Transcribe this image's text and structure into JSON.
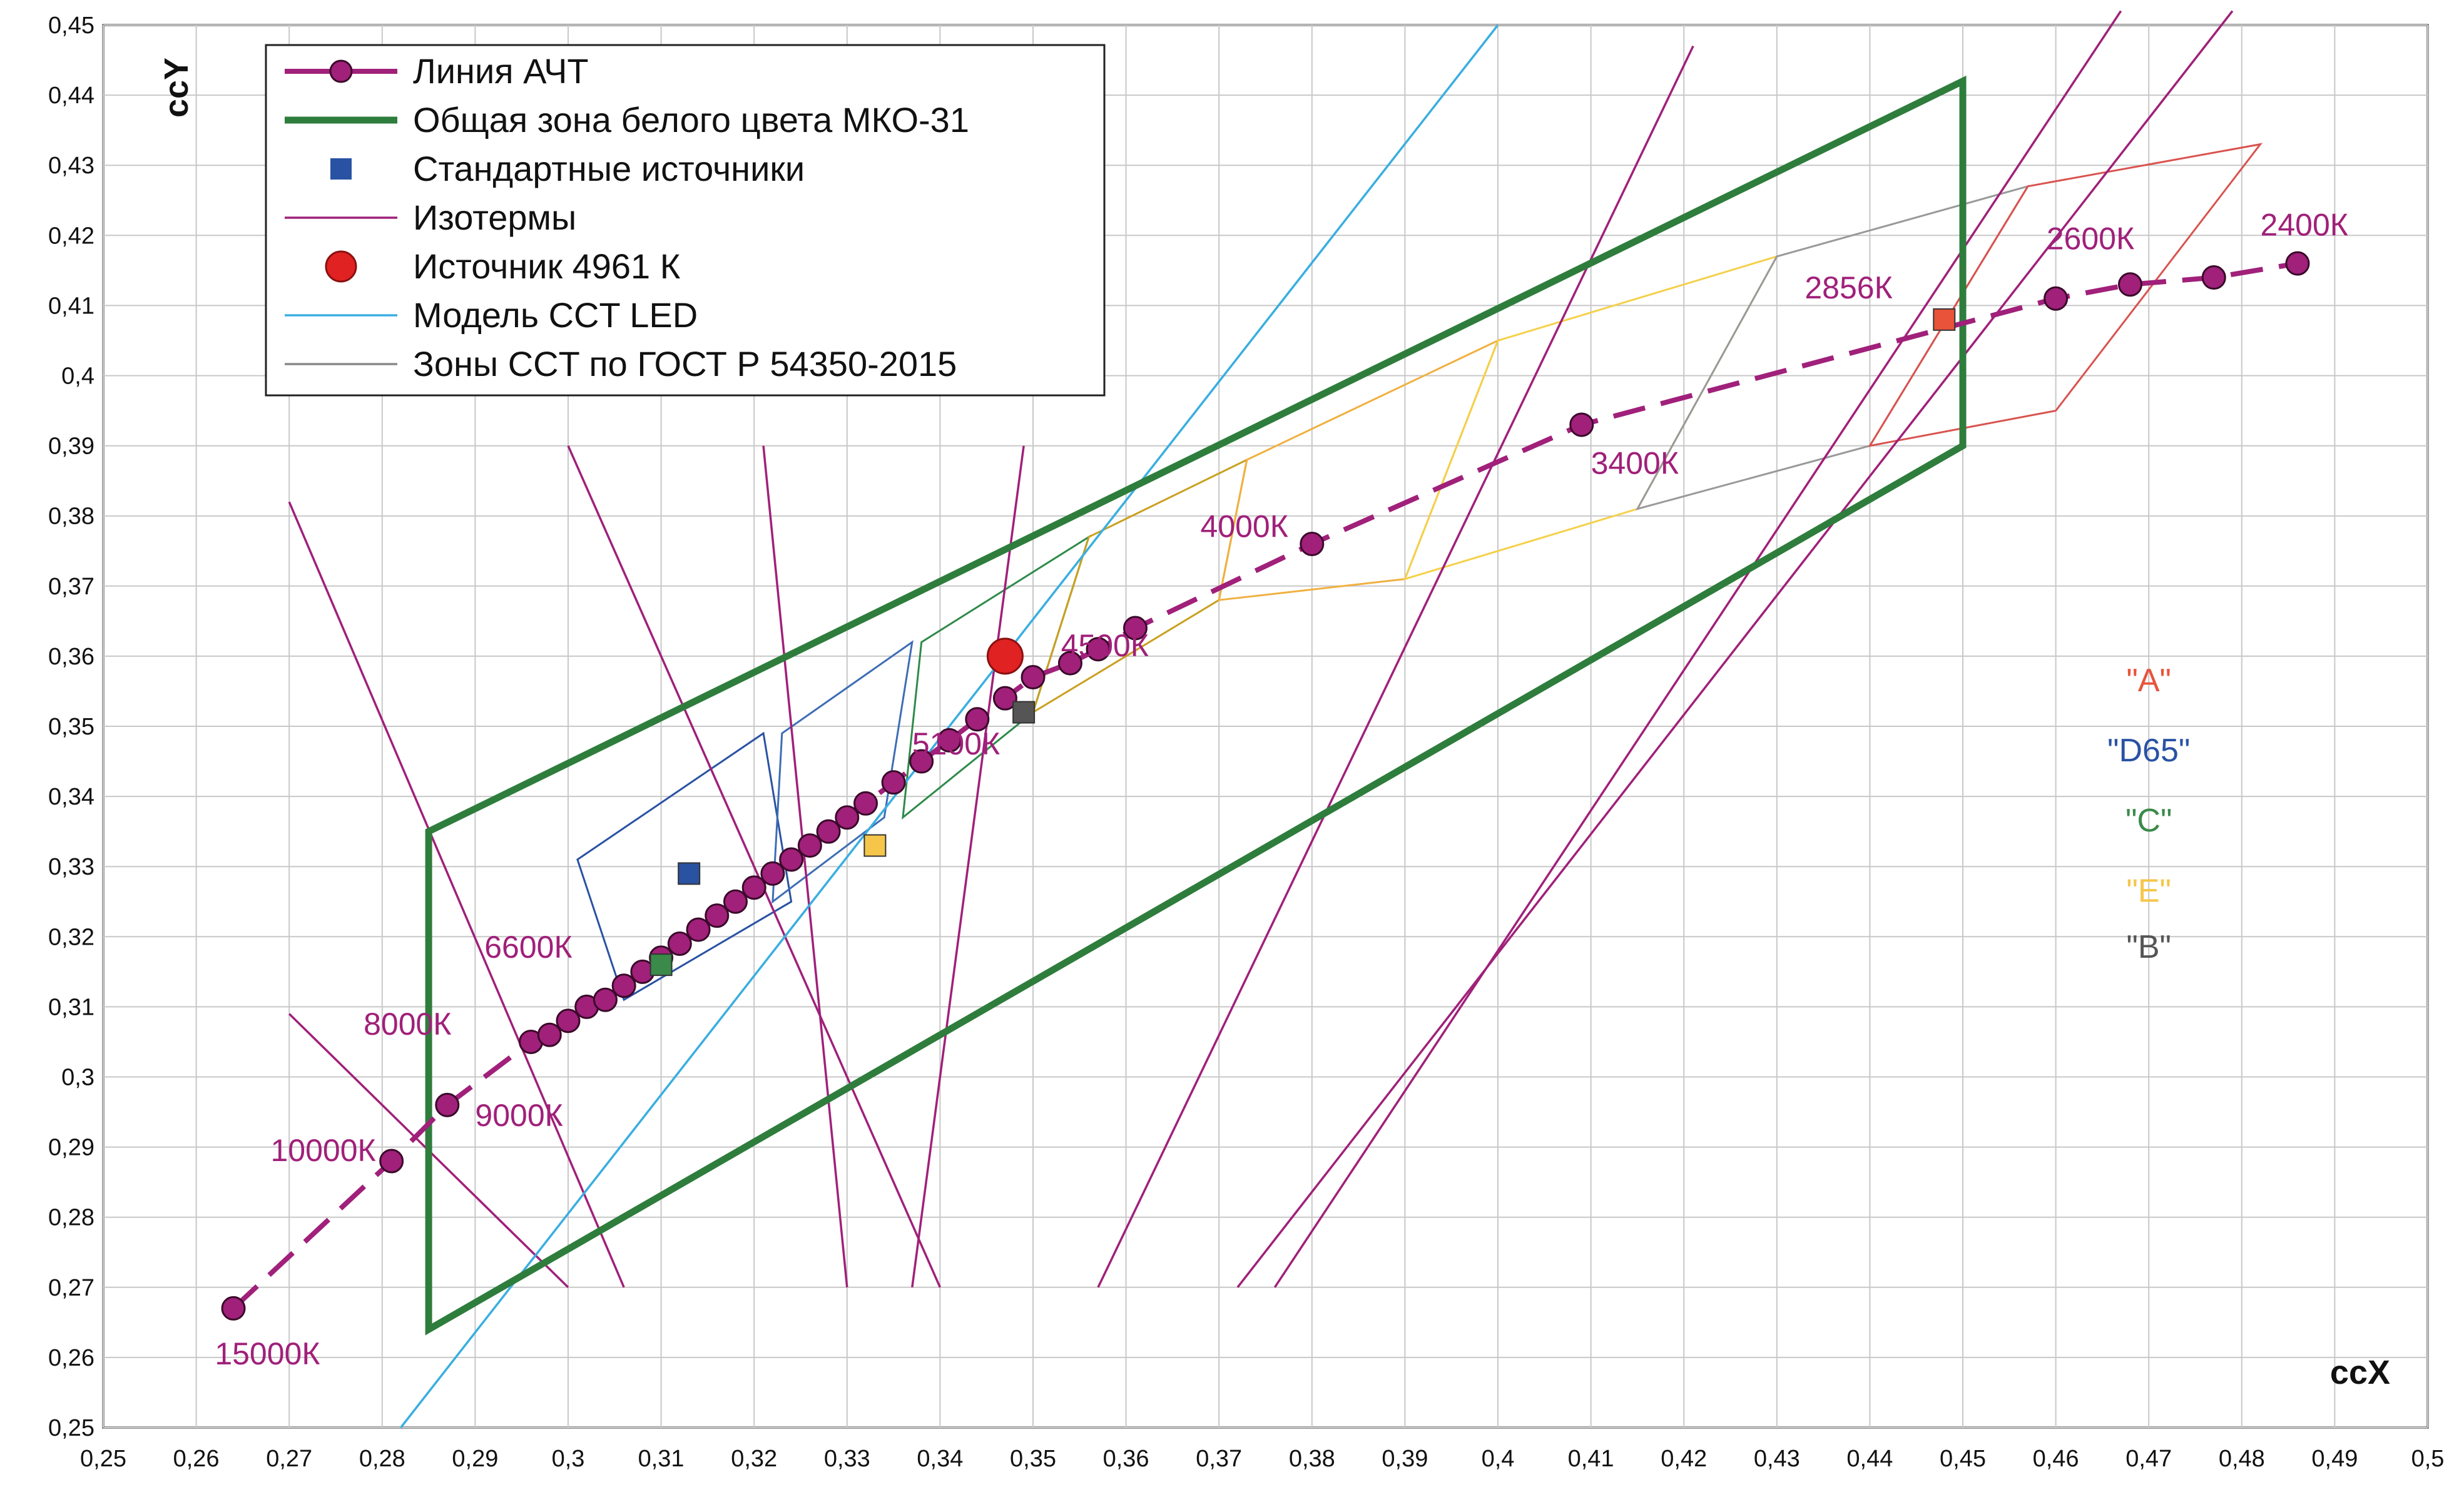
{
  "chart_data": {
    "type": "scatter",
    "xlabel": "ccX",
    "ylabel": "ccY",
    "xlim": [
      0.25,
      0.5
    ],
    "ylim": [
      0.25,
      0.45
    ],
    "x_ticks": [
      "0,25",
      "0,26",
      "0,27",
      "0,28",
      "0,29",
      "0,3",
      "0,31",
      "0,32",
      "0,33",
      "0,34",
      "0,35",
      "0,36",
      "0,37",
      "0,38",
      "0,39",
      "0,4",
      "0,41",
      "0,42",
      "0,43",
      "0,44",
      "0,45",
      "0,46",
      "0,47",
      "0,48",
      "0,49",
      "0,5"
    ],
    "y_ticks": [
      "0,25",
      "0,26",
      "0,27",
      "0,28",
      "0,29",
      "0,3",
      "0,31",
      "0,32",
      "0,33",
      "0,34",
      "0,35",
      "0,36",
      "0,37",
      "0,38",
      "0,39",
      "0,4",
      "0,41",
      "0,42",
      "0,43",
      "0,44",
      "0,45"
    ],
    "grid": true,
    "legend_position": "top-left",
    "legend": [
      {
        "label": "Линия АЧТ",
        "kind": "dashed-line-marker",
        "color": "#a0207a"
      },
      {
        "label": "Общая зона белого цвета МКО-31",
        "kind": "line",
        "color": "#2e7d3c"
      },
      {
        "label": "Стандартные источники",
        "kind": "square",
        "color": "#2952a3"
      },
      {
        "label": "Изотермы",
        "kind": "line",
        "color": "#a0207a"
      },
      {
        "label": "Источник 4961 К",
        "kind": "circle",
        "color": "#e02222"
      },
      {
        "label": "Модель CCT LED",
        "kind": "line",
        "color": "#3aaee0"
      },
      {
        "label": "Зоны CCT по ГОСТ Р 54350-2015",
        "kind": "line",
        "color": "#888888"
      }
    ],
    "planckian_locus": {
      "name": "Линия АЧТ",
      "color": "#a0207a",
      "points": [
        [
          0.264,
          0.267
        ],
        [
          0.281,
          0.288
        ],
        [
          0.287,
          0.296
        ],
        [
          0.296,
          0.305
        ],
        [
          0.298,
          0.306
        ],
        [
          0.3,
          0.308
        ],
        [
          0.302,
          0.31
        ],
        [
          0.304,
          0.311
        ],
        [
          0.306,
          0.313
        ],
        [
          0.308,
          0.315
        ],
        [
          0.31,
          0.317
        ],
        [
          0.312,
          0.319
        ],
        [
          0.314,
          0.321
        ],
        [
          0.316,
          0.323
        ],
        [
          0.318,
          0.325
        ],
        [
          0.32,
          0.327
        ],
        [
          0.322,
          0.329
        ],
        [
          0.324,
          0.331
        ],
        [
          0.326,
          0.333
        ],
        [
          0.328,
          0.335
        ],
        [
          0.33,
          0.337
        ],
        [
          0.332,
          0.339
        ],
        [
          0.335,
          0.342
        ],
        [
          0.338,
          0.345
        ],
        [
          0.341,
          0.348
        ],
        [
          0.344,
          0.351
        ],
        [
          0.347,
          0.354
        ],
        [
          0.35,
          0.357
        ],
        [
          0.354,
          0.359
        ],
        [
          0.357,
          0.361
        ],
        [
          0.361,
          0.364
        ],
        [
          0.38,
          0.376
        ],
        [
          0.409,
          0.393
        ],
        [
          0.46,
          0.411
        ],
        [
          0.468,
          0.413
        ],
        [
          0.477,
          0.414
        ],
        [
          0.486,
          0.416
        ]
      ]
    },
    "planckian_labels": [
      {
        "text": "15000К",
        "x": 0.262,
        "y": 0.259
      },
      {
        "text": "10000К",
        "x": 0.268,
        "y": 0.288
      },
      {
        "text": "9000К",
        "x": 0.29,
        "y": 0.293
      },
      {
        "text": "8000К",
        "x": 0.278,
        "y": 0.306
      },
      {
        "text": "6600К",
        "x": 0.291,
        "y": 0.317
      },
      {
        "text": "5100К",
        "x": 0.337,
        "y": 0.346
      },
      {
        "text": "4500К",
        "x": 0.353,
        "y": 0.36
      },
      {
        "text": "4000К",
        "x": 0.368,
        "y": 0.377
      },
      {
        "text": "3400К",
        "x": 0.41,
        "y": 0.386
      },
      {
        "text": "2856К",
        "x": 0.433,
        "y": 0.411
      },
      {
        "text": "2600К",
        "x": 0.459,
        "y": 0.418
      },
      {
        "text": "2400К",
        "x": 0.482,
        "y": 0.42
      }
    ],
    "white_zone": {
      "name": "Общая зона белого цвета МКО-31",
      "color": "#2e7d3c",
      "points": [
        [
          0.285,
          0.335
        ],
        [
          0.45,
          0.442
        ],
        [
          0.45,
          0.39
        ],
        [
          0.285,
          0.264
        ]
      ]
    },
    "isotherms": {
      "color": "#a0207a",
      "lines": [
        [
          [
            0.27,
            0.382
          ],
          [
            0.306,
            0.27
          ]
        ],
        [
          [
            0.27,
            0.309
          ],
          [
            0.3,
            0.27
          ]
        ],
        [
          [
            0.3,
            0.39
          ],
          [
            0.34,
            0.27
          ]
        ],
        [
          [
            0.321,
            0.39
          ],
          [
            0.33,
            0.27
          ]
        ],
        [
          [
            0.349,
            0.39
          ],
          [
            0.337,
            0.27
          ]
        ],
        [
          [
            0.421,
            0.447
          ],
          [
            0.357,
            0.27
          ]
        ],
        [
          [
            0.467,
            0.452
          ],
          [
            0.376,
            0.27
          ]
        ],
        [
          [
            0.479,
            0.452
          ],
          [
            0.372,
            0.27
          ]
        ]
      ]
    },
    "led_model": {
      "name": "Модель CCT LED",
      "color": "#3aaee0",
      "points": [
        [
          0.282,
          0.25
        ],
        [
          0.4,
          0.45
        ]
      ]
    },
    "gost_zones": [
      {
        "color": "#2952a3",
        "points": [
          [
            0.301,
            0.331
          ],
          [
            0.321,
            0.349
          ],
          [
            0.324,
            0.325
          ],
          [
            0.306,
            0.311
          ]
        ]
      },
      {
        "color": "#3d6db5",
        "points": [
          [
            0.323,
            0.349
          ],
          [
            0.337,
            0.362
          ],
          [
            0.334,
            0.337
          ],
          [
            0.322,
            0.325
          ]
        ]
      },
      {
        "color": "#2e8a4a",
        "points": [
          [
            0.338,
            0.362
          ],
          [
            0.356,
            0.377
          ],
          [
            0.35,
            0.352
          ],
          [
            0.336,
            0.337
          ]
        ]
      },
      {
        "color": "#c9a020",
        "points": [
          [
            0.356,
            0.377
          ],
          [
            0.373,
            0.388
          ],
          [
            0.37,
            0.368
          ],
          [
            0.35,
            0.352
          ]
        ]
      },
      {
        "color": "#f0b040",
        "points": [
          [
            0.373,
            0.388
          ],
          [
            0.4,
            0.405
          ],
          [
            0.39,
            0.371
          ],
          [
            0.37,
            0.368
          ]
        ]
      },
      {
        "color": "#f5d04a",
        "points": [
          [
            0.4,
            0.405
          ],
          [
            0.43,
            0.417
          ],
          [
            0.415,
            0.381
          ],
          [
            0.39,
            0.371
          ]
        ]
      },
      {
        "color": "#999999",
        "points": [
          [
            0.43,
            0.417
          ],
          [
            0.457,
            0.427
          ],
          [
            0.44,
            0.39
          ],
          [
            0.415,
            0.381
          ]
        ]
      },
      {
        "color": "#d9534f",
        "points": [
          [
            0.457,
            0.427
          ],
          [
            0.482,
            0.433
          ],
          [
            0.46,
            0.395
          ],
          [
            0.44,
            0.39
          ]
        ]
      }
    ],
    "standard_sources": [
      {
        "name": "\"A\"",
        "x": 0.448,
        "y": 0.408,
        "color": "#e8533a",
        "label_color": "#e8533a"
      },
      {
        "name": "\"D65\"",
        "x": 0.313,
        "y": 0.329,
        "color": "#2952a3",
        "label_color": "#2952a3"
      },
      {
        "name": "\"C\"",
        "x": 0.31,
        "y": 0.316,
        "color": "#3a8a4a",
        "label_color": "#3a8a4a"
      },
      {
        "name": "\"E\"",
        "x": 0.333,
        "y": 0.333,
        "color": "#f5c64a",
        "label_color": "#f5c64a"
      },
      {
        "name": "\"B\"",
        "x": 0.349,
        "y": 0.352,
        "color": "#555555",
        "label_color": "#555555"
      }
    ],
    "source_4961": {
      "name": "Источник 4961 К",
      "x": 0.347,
      "y": 0.36,
      "color": "#e02222"
    }
  }
}
